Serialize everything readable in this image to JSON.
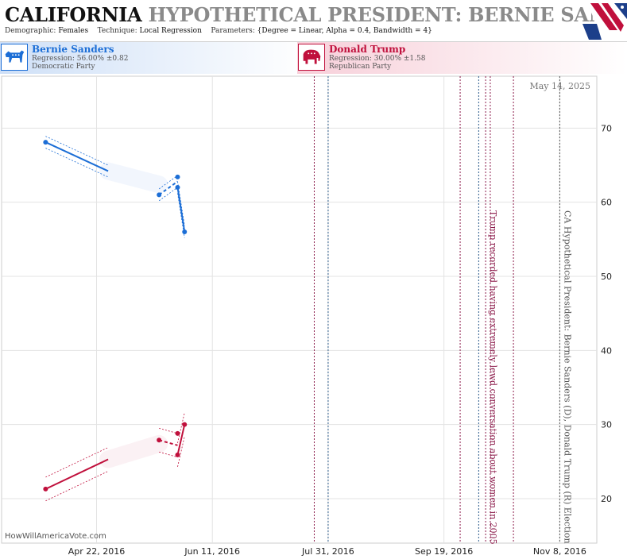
{
  "header": {
    "state": "CALIFORNIA",
    "title_rest": "HYPOTHETICAL PRESIDENT: BERNIE SANDERS (D)",
    "demographic_label": "Demographic:",
    "demographic_value": "Females",
    "technique_label": "Technique:",
    "technique_value": "Local Regression",
    "parameters_label": "Parameters:",
    "parameters_value": "{Degree = Linear, Alpha = 0.4, Bandwidth = 4}"
  },
  "candidates": [
    {
      "name": "Bernie Sanders",
      "regression": "Regression: 56.00% ±0.82",
      "party": "Democratic Party",
      "color": "#1c6ed6",
      "icon": "donkey-icon"
    },
    {
      "name": "Donald Trump",
      "regression": "Regression: 30.00% ±1.58",
      "party": "Republican Party",
      "color": "#c0103c",
      "icon": "elephant-icon"
    }
  ],
  "chart_data": {
    "type": "line",
    "date_stamp": "May 14, 2025",
    "watermark": "HowWillAmericaVote.com",
    "x_ticks": [
      "Apr 22, 2016",
      "Jun 11, 2016",
      "Jul 31, 2016",
      "Sep 19, 2016",
      "Nov 8, 2016"
    ],
    "y_ticks": [
      20,
      30,
      40,
      50,
      60,
      70
    ],
    "ylim": [
      14,
      77
    ],
    "xlim": [
      "2016-03-12",
      "2016-11-24"
    ],
    "series": [
      {
        "name": "Bernie Sanders",
        "color": "#1c6ed6",
        "points": [
          {
            "date": "2016-03-31",
            "value": 68.1
          },
          {
            "date": "2016-05-19",
            "value": 61.0
          },
          {
            "date": "2016-05-27",
            "value": 63.4
          },
          {
            "date": "2016-05-27",
            "value": 62.0
          },
          {
            "date": "2016-05-30",
            "value": 56.0
          }
        ],
        "fit_segments": [
          {
            "from": [
              "2016-03-31",
              68.1
            ],
            "to": [
              "2016-04-27",
              64.2
            ],
            "style": "solid",
            "band": 0.8
          },
          {
            "from": [
              "2016-05-19",
              61.0
            ],
            "to": [
              "2016-05-27",
              62.8
            ],
            "style": "dashed",
            "band": 0.8
          },
          {
            "from": [
              "2016-05-27",
              62.0
            ],
            "to": [
              "2016-05-30",
              56.0
            ],
            "style": "solid",
            "band": 0.8
          }
        ],
        "fill_trend": [
          [
            "2016-04-27",
            64.2
          ],
          [
            "2016-05-19",
            62.4
          ]
        ]
      },
      {
        "name": "Donald Trump",
        "color": "#c0103c",
        "points": [
          {
            "date": "2016-03-31",
            "value": 21.3
          },
          {
            "date": "2016-05-19",
            "value": 27.9
          },
          {
            "date": "2016-05-27",
            "value": 28.8
          },
          {
            "date": "2016-05-27",
            "value": 25.9
          },
          {
            "date": "2016-05-30",
            "value": 30.0
          }
        ],
        "fit_segments": [
          {
            "from": [
              "2016-03-31",
              21.3
            ],
            "to": [
              "2016-04-27",
              25.3
            ],
            "style": "solid",
            "band": 1.6
          },
          {
            "from": [
              "2016-05-19",
              27.9
            ],
            "to": [
              "2016-05-27",
              27.2
            ],
            "style": "dashed",
            "band": 1.6
          },
          {
            "from": [
              "2016-05-27",
              25.9
            ],
            "to": [
              "2016-05-30",
              30.0
            ],
            "style": "solid",
            "band": 1.6
          }
        ],
        "fill_trend": [
          [
            "2016-04-27",
            25.3
          ],
          [
            "2016-05-19",
            27.4
          ]
        ]
      }
    ],
    "event_lines": [
      {
        "date": "2016-07-25",
        "color": "#8b1a4a"
      },
      {
        "date": "2016-07-31",
        "color": "#2a5a8a"
      },
      {
        "date": "2016-09-26",
        "color": "#8b1a4a"
      },
      {
        "date": "2016-10-04",
        "color": "#2a5a8a"
      },
      {
        "date": "2016-10-07",
        "color": "#8b1a4a",
        "label": "Trump recorded having extremely lewd conversation about women in 2005"
      },
      {
        "date": "2016-10-09",
        "color": "#8b1a4a"
      },
      {
        "date": "2016-10-19",
        "color": "#8b1a4a"
      },
      {
        "date": "2016-11-08",
        "color": "#555555",
        "label": "CA Hypothetical President: Bernie Sanders (D), Donald Trump (R) Election"
      }
    ]
  }
}
